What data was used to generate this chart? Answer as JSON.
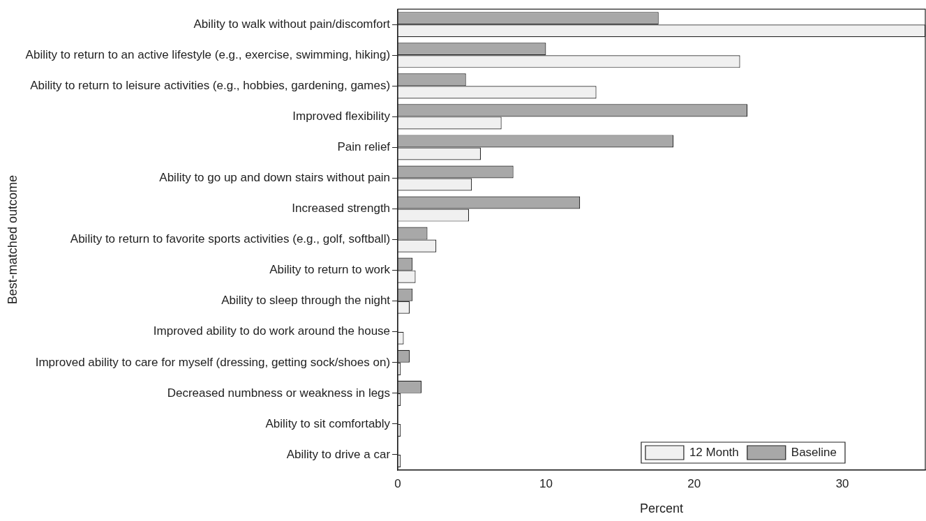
{
  "chart_data": {
    "type": "bar",
    "orientation": "horizontal",
    "xlabel": "Percent",
    "ylabel": "Best-matched outcome",
    "categories": [
      "Ability to walk without pain/discomfort",
      "Ability to return to an active lifestyle (e.g., exercise, swimming, hiking)",
      "Ability to return to leisure activities (e.g., hobbies, gardening, games)",
      "Improved flexibility",
      "Pain relief",
      "Ability to go up and down stairs without pain",
      "Increased strength",
      "Ability to return to favorite sports activities (e.g., golf, softball)",
      "Ability to return to work",
      "Ability to sleep through the night",
      "Improved ability to do work around the house",
      "Improved ability to care for myself (dressing, getting sock/shoes on)",
      "Decreased numbness or weakness in legs",
      "Ability to sit comfortably",
      "Ability to drive a car"
    ],
    "series": [
      {
        "name": "12 Month",
        "color": "#f0f0f0",
        "values": [
          35.6,
          23.1,
          13.4,
          7.0,
          5.6,
          5.0,
          4.8,
          2.6,
          1.2,
          0.8,
          0.4,
          0.2,
          0.2,
          0.2,
          0.2
        ]
      },
      {
        "name": "Baseline",
        "color": "#a8a8a8",
        "values": [
          17.6,
          10.0,
          4.6,
          23.6,
          18.6,
          7.8,
          12.3,
          2.0,
          1.0,
          1.0,
          0,
          0.8,
          1.6,
          0,
          0
        ]
      }
    ],
    "xlim": [
      0,
      35.6
    ],
    "xticks": [
      0,
      10,
      20,
      30
    ],
    "grid": false,
    "legend": "bottom right"
  }
}
